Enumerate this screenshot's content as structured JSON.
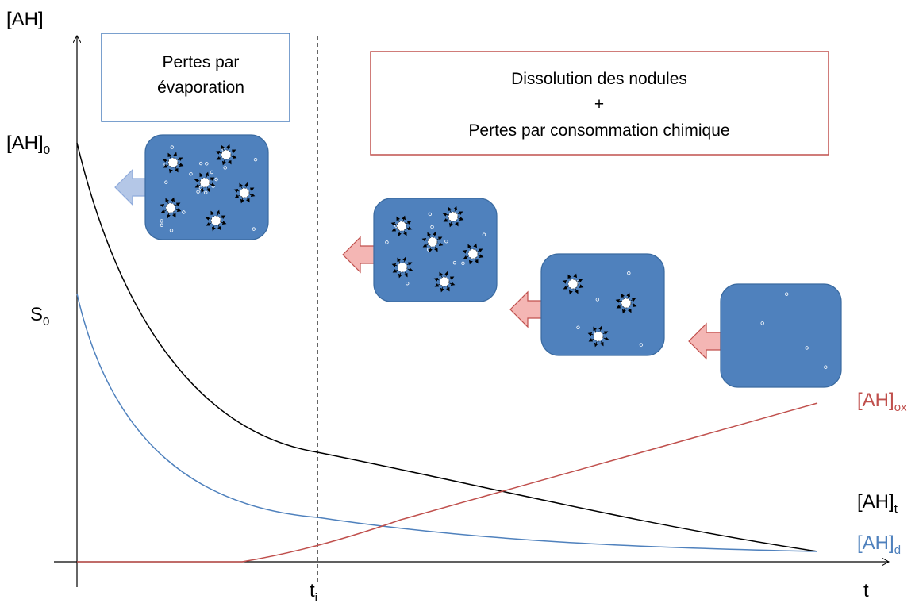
{
  "axes": {
    "y_label": "[AH]",
    "x_label": "t"
  },
  "markers": [
    {
      "label": "[AH]",
      "sub": "0"
    },
    {
      "label": "S",
      "sub": "0"
    },
    {
      "label": "t",
      "sub": "i"
    }
  ],
  "curves": [
    {
      "label": "[AH]",
      "sub": "ox"
    },
    {
      "label": "[AH]",
      "sub": "t"
    },
    {
      "label": "[AH]",
      "sub": "d"
    }
  ],
  "boxes": [
    {
      "lines": [
        "Pertes par",
        "évaporation"
      ]
    },
    {
      "lines": [
        "Dissolution des nodules",
        "+",
        "Pertes par consommation chimique"
      ]
    }
  ]
}
